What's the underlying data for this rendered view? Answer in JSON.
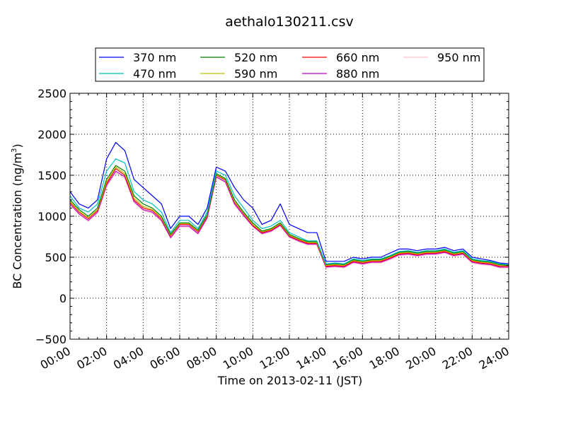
{
  "chart_data": {
    "type": "line",
    "title": "aethalo130211.csv",
    "xlabel": "Time on 2013-02-11 (JST)",
    "ylabel": "BC Concentration (ng/m³)",
    "xlim": [
      "00:00",
      "24:00"
    ],
    "ylim": [
      -500,
      2500
    ],
    "x_ticks": [
      "00:00",
      "02:00",
      "04:00",
      "06:00",
      "08:00",
      "10:00",
      "12:00",
      "14:00",
      "16:00",
      "18:00",
      "20:00",
      "22:00",
      "24:00"
    ],
    "y_ticks": [
      "2500",
      "2000",
      "1500",
      "1000",
      "500",
      "0",
      "−500"
    ],
    "grid": "dotted",
    "legend_position": "top",
    "x": [
      "00:00",
      "00:30",
      "01:00",
      "01:30",
      "02:00",
      "02:30",
      "03:00",
      "03:30",
      "04:00",
      "04:30",
      "05:00",
      "05:30",
      "06:00",
      "06:30",
      "07:00",
      "07:30",
      "08:00",
      "08:30",
      "09:00",
      "09:30",
      "10:00",
      "10:30",
      "11:00",
      "11:30",
      "12:00",
      "12:30",
      "13:00",
      "13:30",
      "14:00",
      "14:30",
      "15:00",
      "15:30",
      "16:00",
      "16:30",
      "17:00",
      "17:30",
      "18:00",
      "18:30",
      "19:00",
      "19:30",
      "20:00",
      "20:30",
      "21:00",
      "21:30",
      "22:00",
      "22:30",
      "23:00",
      "23:30",
      "24:00"
    ],
    "series": [
      {
        "name": "370 nm",
        "color": "#0000ff",
        "values": [
          1300,
          1150,
          1100,
          1200,
          1700,
          1900,
          1800,
          1450,
          1350,
          1250,
          1150,
          850,
          1000,
          1000,
          900,
          1100,
          1600,
          1550,
          1350,
          1200,
          1100,
          900,
          950,
          1150,
          900,
          850,
          800,
          800,
          450,
          450,
          450,
          500,
          480,
          500,
          500,
          550,
          600,
          600,
          580,
          600,
          600,
          620,
          580,
          600,
          500,
          480,
          460,
          430,
          420
        ]
      },
      {
        "name": "470 nm",
        "color": "#00bfbf",
        "values": [
          1250,
          1100,
          1050,
          1150,
          1550,
          1700,
          1650,
          1300,
          1200,
          1150,
          1050,
          800,
          950,
          950,
          850,
          1050,
          1550,
          1500,
          1250,
          1100,
          950,
          850,
          880,
          950,
          800,
          750,
          700,
          700,
          420,
          430,
          420,
          480,
          460,
          480,
          480,
          520,
          570,
          580,
          560,
          580,
          580,
          600,
          560,
          580,
          480,
          460,
          450,
          420,
          410
        ]
      },
      {
        "name": "520 nm",
        "color": "#008000",
        "values": [
          1200,
          1080,
          1000,
          1100,
          1450,
          1620,
          1550,
          1250,
          1150,
          1100,
          1000,
          780,
          920,
          920,
          830,
          1020,
          1520,
          1460,
          1200,
          1050,
          920,
          820,
          850,
          920,
          780,
          730,
          690,
          690,
          410,
          420,
          410,
          470,
          450,
          470,
          470,
          510,
          560,
          570,
          550,
          570,
          570,
          590,
          550,
          570,
          470,
          450,
          440,
          410,
          400
        ]
      },
      {
        "name": "590 nm",
        "color": "#bfbf00",
        "values": [
          1180,
          1060,
          980,
          1080,
          1420,
          1600,
          1520,
          1220,
          1120,
          1080,
          980,
          770,
          910,
          910,
          820,
          1010,
          1510,
          1450,
          1180,
          1040,
          900,
          810,
          840,
          910,
          770,
          720,
          680,
          680,
          400,
          410,
          400,
          460,
          440,
          460,
          460,
          500,
          550,
          560,
          540,
          560,
          560,
          580,
          540,
          560,
          460,
          440,
          430,
          400,
          395
        ]
      },
      {
        "name": "660 nm",
        "color": "#ff0000",
        "values": [
          1170,
          1050,
          970,
          1070,
          1400,
          1580,
          1500,
          1200,
          1100,
          1070,
          970,
          760,
          900,
          900,
          810,
          1000,
          1500,
          1440,
          1170,
          1030,
          890,
          800,
          830,
          900,
          760,
          710,
          670,
          670,
          390,
          400,
          390,
          450,
          430,
          450,
          450,
          490,
          540,
          550,
          530,
          550,
          550,
          570,
          530,
          550,
          450,
          430,
          420,
          390,
          390
        ]
      },
      {
        "name": "880 nm",
        "color": "#bf00bf",
        "values": [
          1150,
          1030,
          950,
          1050,
          1380,
          1550,
          1480,
          1180,
          1080,
          1050,
          950,
          740,
          880,
          880,
          790,
          980,
          1480,
          1420,
          1150,
          1010,
          880,
          790,
          820,
          890,
          750,
          700,
          660,
          660,
          380,
          390,
          380,
          440,
          420,
          440,
          440,
          480,
          530,
          540,
          520,
          540,
          540,
          560,
          520,
          540,
          440,
          420,
          410,
          380,
          380
        ]
      },
      {
        "name": "950 nm",
        "color": "#ffc0cb",
        "values": [
          1140,
          1020,
          940,
          1040,
          1360,
          1530,
          1460,
          1170,
          1070,
          1040,
          940,
          730,
          870,
          870,
          780,
          970,
          1470,
          1410,
          1140,
          1000,
          870,
          780,
          810,
          880,
          740,
          690,
          650,
          650,
          370,
          380,
          370,
          430,
          410,
          430,
          430,
          470,
          520,
          530,
          510,
          530,
          530,
          550,
          510,
          530,
          430,
          410,
          400,
          370,
          370
        ]
      }
    ]
  }
}
